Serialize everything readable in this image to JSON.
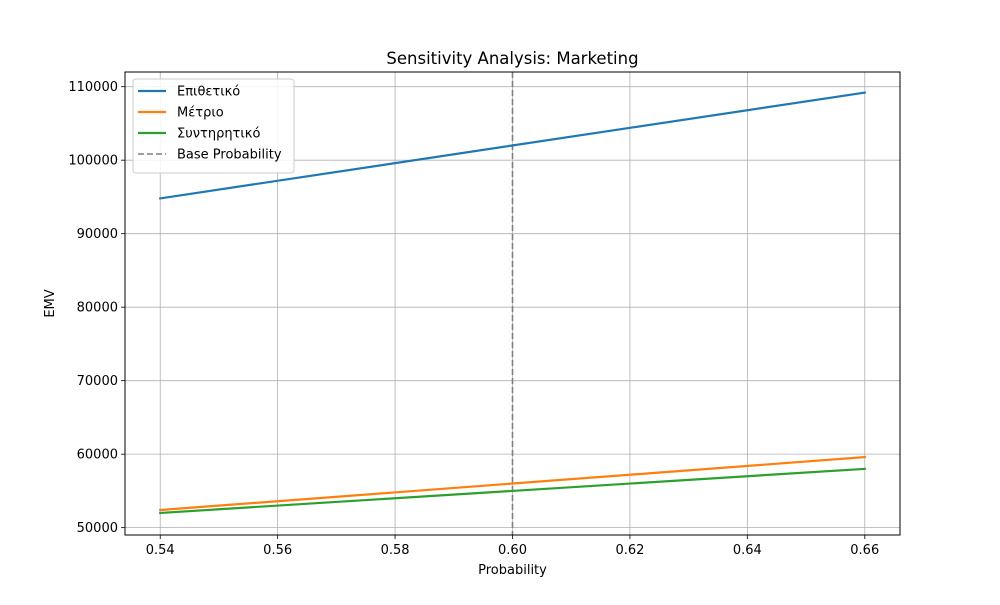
{
  "chart_data": {
    "type": "line",
    "title": "Sensitivity Analysis: Marketing",
    "xlabel": "Probability",
    "ylabel": "EMV",
    "xlim": [
      0.534,
      0.666
    ],
    "ylim": [
      49000,
      112000
    ],
    "x_ticks": [
      0.54,
      0.56,
      0.58,
      0.6,
      0.62,
      0.64,
      0.66
    ],
    "x_tick_labels": [
      "0.54",
      "0.56",
      "0.58",
      "0.60",
      "0.62",
      "0.64",
      "0.66"
    ],
    "y_ticks": [
      50000,
      60000,
      70000,
      80000,
      90000,
      100000,
      110000
    ],
    "y_tick_labels": [
      "50000",
      "60000",
      "70000",
      "80000",
      "90000",
      "100000",
      "110000"
    ],
    "grid": true,
    "legend_position": "upper-left",
    "x": [
      0.54,
      0.66
    ],
    "series": [
      {
        "name": "Επιθετικό",
        "color": "#1f77b4",
        "values": [
          94800,
          109200
        ]
      },
      {
        "name": "Μέτριο",
        "color": "#ff7f0e",
        "values": [
          52400,
          59600
        ]
      },
      {
        "name": "Συντηρητικό",
        "color": "#2ca02c",
        "values": [
          52000,
          58000
        ]
      }
    ],
    "reference_line": {
      "name": "Base Probability",
      "x": 0.6,
      "color": "#7f7f7f",
      "style": "dashed"
    }
  }
}
